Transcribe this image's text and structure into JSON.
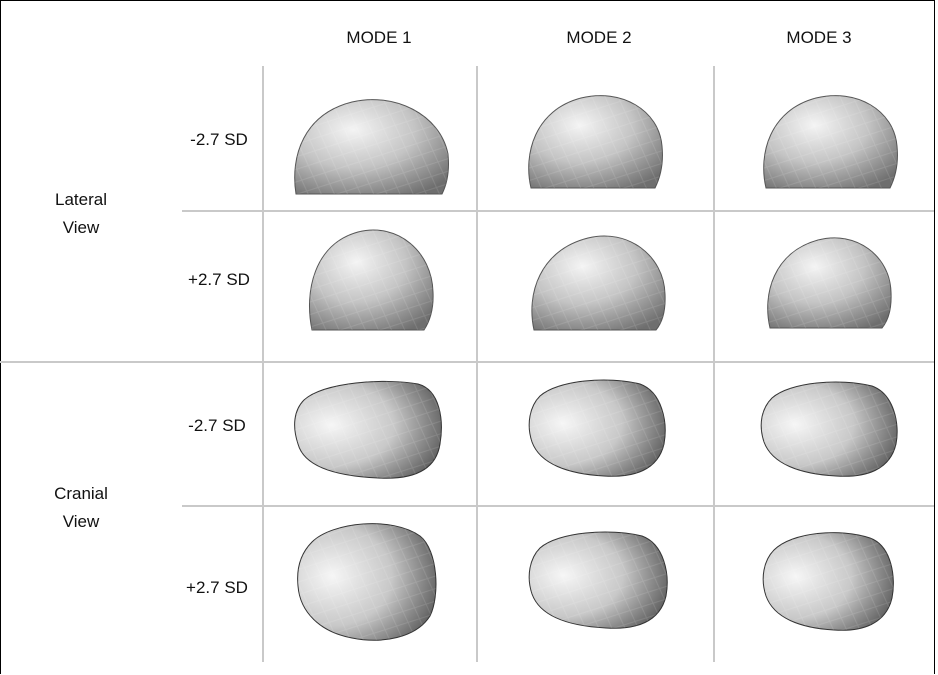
{
  "columns": [
    "MODE 1",
    "MODE 2",
    "MODE 3"
  ],
  "groups": [
    {
      "label_line1": "Lateral",
      "label_line2": "View"
    },
    {
      "label_line1": "Cranial",
      "label_line2": "View"
    }
  ],
  "rows": [
    {
      "label": "-2.7 SD",
      "group": 0,
      "view": "lateral"
    },
    {
      "label": "+2.7 SD",
      "group": 0,
      "view": "lateral"
    },
    {
      "label": "-2.7 SD",
      "group": 1,
      "view": "cranial"
    },
    {
      "label": "+2.7 SD",
      "group": 1,
      "view": "cranial"
    }
  ],
  "colors": {
    "grid_line": "#c9c9c9",
    "shape_light": "#f2f2f2",
    "shape_mid": "#b8b8b8",
    "shape_dark": "#3c3c3c",
    "text": "#111111"
  }
}
